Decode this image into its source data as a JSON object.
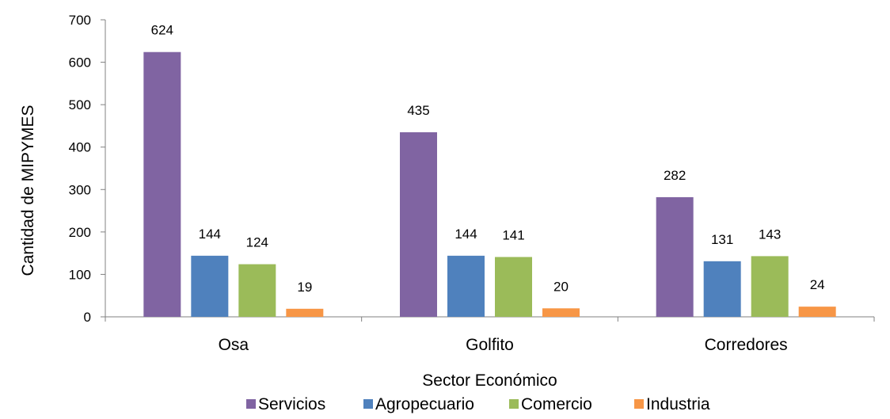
{
  "chart_data": {
    "type": "bar",
    "categories": [
      "Osa",
      "Golfito",
      "Corredores"
    ],
    "series": [
      {
        "name": "Servicios",
        "values": [
          624,
          435,
          282
        ],
        "color": "#8064a2"
      },
      {
        "name": "Agropecuario",
        "values": [
          144,
          144,
          131
        ],
        "color": "#4f81bd"
      },
      {
        "name": "Comercio",
        "values": [
          124,
          141,
          143
        ],
        "color": "#9bbb59"
      },
      {
        "name": "Industria",
        "values": [
          19,
          20,
          24
        ],
        "color": "#f79646"
      }
    ],
    "xlabel": "Sector Económico",
    "ylabel": "Cantidad de MIPYMES",
    "ylim": [
      0,
      700
    ],
    "yticks": [
      0,
      100,
      200,
      300,
      400,
      500,
      600,
      700
    ],
    "grid": false,
    "data_labels": true,
    "legend_position": "bottom"
  }
}
